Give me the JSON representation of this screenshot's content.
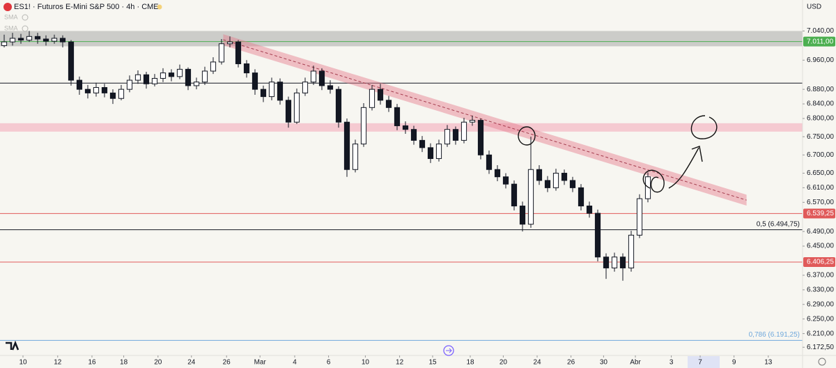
{
  "chart_data": {
    "type": "candlestick",
    "title": "ES1! · Futuros E-Mini S&P 500 · 4h · CME",
    "currency": "USD",
    "indicators": [
      "SMA",
      "SMA"
    ],
    "up_color": "#ffffff",
    "down_color": "#131722",
    "grid": false,
    "xlim": [
      -0.5,
      95.5
    ],
    "xticks": [
      {
        "value": 2.25,
        "label": "10"
      },
      {
        "value": 6.4,
        "label": "12"
      },
      {
        "value": 10.5,
        "label": "16"
      },
      {
        "value": 14.3,
        "label": "18"
      },
      {
        "value": 18.4,
        "label": "20"
      },
      {
        "value": 22.4,
        "label": "24"
      },
      {
        "value": 26.6,
        "label": "26"
      },
      {
        "value": 30.6,
        "label": "Mar"
      },
      {
        "value": 34.75,
        "label": "4"
      },
      {
        "value": 38.8,
        "label": "6"
      },
      {
        "value": 43.2,
        "label": "10"
      },
      {
        "value": 47.3,
        "label": "12"
      },
      {
        "value": 51.25,
        "label": "15"
      },
      {
        "value": 55.75,
        "label": "18"
      },
      {
        "value": 59.7,
        "label": "20"
      },
      {
        "value": 63.75,
        "label": "24"
      },
      {
        "value": 67.8,
        "label": "26"
      },
      {
        "value": 71.7,
        "label": "30"
      },
      {
        "value": 75.5,
        "label": "Abr"
      },
      {
        "value": 79.8,
        "label": "3"
      },
      {
        "value": 83.25,
        "label": "7"
      },
      {
        "value": 87.3,
        "label": "9"
      },
      {
        "value": 91.4,
        "label": "13"
      }
    ],
    "ylim": [
      6150,
      7125
    ],
    "yticks": [
      {
        "value": 7040,
        "label": "7.040,00"
      },
      {
        "value": 6960,
        "label": "6.960,00"
      },
      {
        "value": 6880,
        "label": "6.880,00"
      },
      {
        "value": 6840,
        "label": "6.840,00"
      },
      {
        "value": 6800,
        "label": "6.800,00"
      },
      {
        "value": 6750,
        "label": "6.750,00"
      },
      {
        "value": 6700,
        "label": "6.700,00"
      },
      {
        "value": 6650,
        "label": "6.650,00"
      },
      {
        "value": 6610,
        "label": "6.610,00"
      },
      {
        "value": 6570,
        "label": "6.570,00"
      },
      {
        "value": 6490,
        "label": "6.490,00"
      },
      {
        "value": 6450,
        "label": "6.450,00"
      },
      {
        "value": 6370,
        "label": "6.370,00"
      },
      {
        "value": 6330,
        "label": "6.330,00"
      },
      {
        "value": 6290,
        "label": "6.290,00"
      },
      {
        "value": 6250,
        "label": "6.250,00"
      },
      {
        "value": 6210,
        "label": "6.210,00"
      },
      {
        "value": 6172.5,
        "label": "6.172,50"
      }
    ],
    "ohlc": [
      [
        7000,
        7030,
        6995,
        7010
      ],
      [
        7010,
        7035,
        7000,
        7020
      ],
      [
        7020,
        7032,
        7005,
        7015
      ],
      [
        7015,
        7040,
        7010,
        7025
      ],
      [
        7025,
        7035,
        7005,
        7018
      ],
      [
        7018,
        7028,
        7000,
        7012
      ],
      [
        7012,
        7030,
        7005,
        7020
      ],
      [
        7020,
        7028,
        6995,
        7010
      ],
      [
        7010,
        7015,
        6890,
        6905
      ],
      [
        6905,
        6915,
        6865,
        6880
      ],
      [
        6880,
        6892,
        6855,
        6870
      ],
      [
        6870,
        6898,
        6860,
        6885
      ],
      [
        6885,
        6895,
        6858,
        6870
      ],
      [
        6870,
        6880,
        6840,
        6855
      ],
      [
        6855,
        6892,
        6850,
        6880
      ],
      [
        6880,
        6918,
        6872,
        6905
      ],
      [
        6905,
        6932,
        6895,
        6920
      ],
      [
        6920,
        6928,
        6882,
        6895
      ],
      [
        6895,
        6922,
        6888,
        6910
      ],
      [
        6910,
        6938,
        6900,
        6925
      ],
      [
        6925,
        6935,
        6902,
        6915
      ],
      [
        6915,
        6948,
        6908,
        6935
      ],
      [
        6935,
        6940,
        6878,
        6890
      ],
      [
        6890,
        6912,
        6880,
        6900
      ],
      [
        6900,
        6942,
        6892,
        6930
      ],
      [
        6930,
        6968,
        6922,
        6955
      ],
      [
        6955,
        7018,
        6948,
        7005
      ],
      [
        7005,
        7025,
        6995,
        7010
      ],
      [
        7010,
        7015,
        6940,
        6950
      ],
      [
        6950,
        6960,
        6912,
        6925
      ],
      [
        6925,
        6935,
        6865,
        6880
      ],
      [
        6880,
        6890,
        6845,
        6860
      ],
      [
        6860,
        6912,
        6850,
        6900
      ],
      [
        6900,
        6910,
        6838,
        6850
      ],
      [
        6850,
        6860,
        6775,
        6790
      ],
      [
        6790,
        6882,
        6785,
        6870
      ],
      [
        6870,
        6912,
        6862,
        6900
      ],
      [
        6900,
        6945,
        6892,
        6930
      ],
      [
        6930,
        6938,
        6878,
        6890
      ],
      [
        6890,
        6905,
        6868,
        6880
      ],
      [
        6880,
        6888,
        6775,
        6790
      ],
      [
        6790,
        6800,
        6640,
        6660
      ],
      [
        6660,
        6742,
        6652,
        6730
      ],
      [
        6730,
        6842,
        6722,
        6830
      ],
      [
        6830,
        6892,
        6822,
        6880
      ],
      [
        6880,
        6895,
        6838,
        6850
      ],
      [
        6850,
        6862,
        6818,
        6830
      ],
      [
        6830,
        6840,
        6768,
        6780
      ],
      [
        6780,
        6792,
        6758,
        6770
      ],
      [
        6770,
        6780,
        6728,
        6740
      ],
      [
        6740,
        6752,
        6708,
        6720
      ],
      [
        6720,
        6732,
        6678,
        6690
      ],
      [
        6690,
        6742,
        6682,
        6730
      ],
      [
        6730,
        6782,
        6722,
        6770
      ],
      [
        6770,
        6778,
        6728,
        6740
      ],
      [
        6740,
        6802,
        6732,
        6790
      ],
      [
        6790,
        6808,
        6780,
        6795
      ],
      [
        6795,
        6800,
        6688,
        6700
      ],
      [
        6700,
        6712,
        6648,
        6660
      ],
      [
        6660,
        6672,
        6628,
        6640
      ],
      [
        6640,
        6650,
        6608,
        6620
      ],
      [
        6620,
        6630,
        6548,
        6560
      ],
      [
        6560,
        6572,
        6490,
        6510
      ],
      [
        6510,
        6750,
        6500,
        6660
      ],
      [
        6660,
        6672,
        6618,
        6630
      ],
      [
        6630,
        6642,
        6598,
        6610
      ],
      [
        6610,
        6662,
        6602,
        6650
      ],
      [
        6650,
        6660,
        6618,
        6630
      ],
      [
        6630,
        6640,
        6598,
        6610
      ],
      [
        6610,
        6620,
        6548,
        6560
      ],
      [
        6560,
        6572,
        6528,
        6540
      ],
      [
        6540,
        6550,
        6408,
        6420
      ],
      [
        6420,
        6430,
        6360,
        6390
      ],
      [
        6390,
        6432,
        6380,
        6420
      ],
      [
        6420,
        6430,
        6355,
        6390
      ],
      [
        6390,
        6492,
        6380,
        6480
      ],
      [
        6480,
        6592,
        6472,
        6580
      ],
      [
        6580,
        6652,
        6570,
        6640
      ]
    ],
    "zones": [
      {
        "from": 6998,
        "to": 7040,
        "color": "#c4c4c2"
      },
      {
        "from": 6764,
        "to": 6787,
        "color": "#f5c2cb"
      }
    ],
    "levels": [
      {
        "value": 7011,
        "label": "7.011,00",
        "color": "#4caf50",
        "label_position": "axis"
      },
      {
        "value": 6897,
        "color": "#131722"
      },
      {
        "value": 6539.25,
        "label": "6.539,25",
        "color": "#e05a5a",
        "label_position": "axis"
      },
      {
        "value": 6494.75,
        "label": "0,5 (6.494,75)",
        "color": "#131722",
        "label_position": "line"
      },
      {
        "value": 6406.25,
        "label": "6.406,25",
        "color": "#e05a5a",
        "label_position": "axis"
      },
      {
        "value": 6191.25,
        "label": "0,786 (6.191,25)",
        "color": "#6fa8dc",
        "label_position": "line"
      }
    ],
    "trendline": {
      "start": [
        26.2,
        7016
      ],
      "end": [
        88.8,
        6576
      ],
      "band": 15,
      "color": "#e57a8c"
    }
  }
}
